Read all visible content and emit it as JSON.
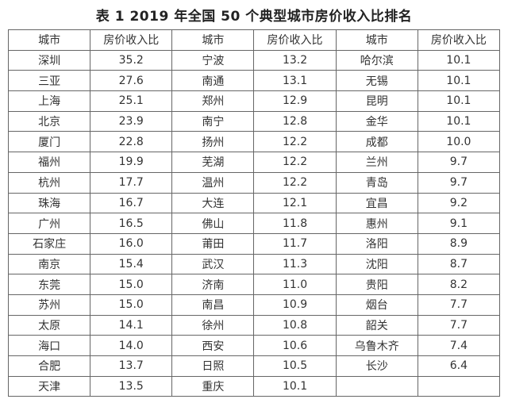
{
  "title": "表 1   2019 年全国 50 个典型城市房价收入比排名",
  "header": [
    "城市",
    "房价收入比",
    "城市",
    "房价收入比",
    "城市",
    "房价收入比"
  ],
  "rows": [
    [
      "深圳",
      "35.2",
      "宁波",
      "13.2",
      "哈尔滨",
      "10.1"
    ],
    [
      "三亚",
      "27.6",
      "南通",
      "13.1",
      "无锡",
      "10.1"
    ],
    [
      "上海",
      "25.1",
      "郑州",
      "12.9",
      "昆明",
      "10.1"
    ],
    [
      "北京",
      "23.9",
      "南宁",
      "12.8",
      "金华",
      "10.1"
    ],
    [
      "厦门",
      "22.8",
      "扬州",
      "12.2",
      "成都",
      "10.0"
    ],
    [
      "福州",
      "19.9",
      "芜湖",
      "12.2",
      "兰州",
      "9.7"
    ],
    [
      "杭州",
      "17.7",
      "温州",
      "12.2",
      "青岛",
      "9.7"
    ],
    [
      "珠海",
      "16.7",
      "大连",
      "12.1",
      "宜昌",
      "9.2"
    ],
    [
      "广州",
      "16.5",
      "佛山",
      "11.8",
      "惠州",
      "9.1"
    ],
    [
      "石家庄",
      "16.0",
      "莆田",
      "11.7",
      "洛阳",
      "8.9"
    ],
    [
      "南京",
      "15.4",
      "武汉",
      "11.3",
      "沈阳",
      "8.7"
    ],
    [
      "东莞",
      "15.0",
      "济南",
      "11.0",
      "贵阳",
      "8.2"
    ],
    [
      "苏州",
      "15.0",
      "南昌",
      "10.9",
      "烟台",
      "7.7"
    ],
    [
      "太原",
      "14.1",
      "徐州",
      "10.8",
      "韶关",
      "7.7"
    ],
    [
      "海口",
      "14.0",
      "西安",
      "10.6",
      "乌鲁木齐",
      "7.4"
    ],
    [
      "合肥",
      "13.7",
      "日照",
      "10.5",
      "长沙",
      "6.4"
    ],
    [
      "天津",
      "13.5",
      "重庆",
      "10.1",
      "",
      ""
    ]
  ]
}
